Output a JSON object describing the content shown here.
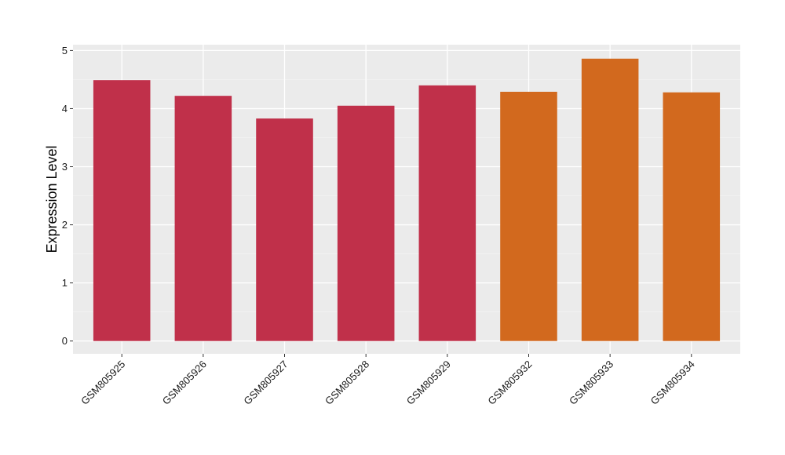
{
  "chart_data": {
    "type": "bar",
    "title": "",
    "xlabel": "",
    "ylabel": "Expression Level",
    "categories": [
      "GSM805925",
      "GSM805926",
      "GSM805927",
      "GSM805928",
      "GSM805929",
      "GSM805932",
      "GSM805933",
      "GSM805934"
    ],
    "values": [
      4.49,
      4.22,
      3.83,
      4.05,
      4.4,
      4.29,
      4.86,
      4.28
    ],
    "bar_colors": [
      "#c0304a",
      "#c0304a",
      "#c0304a",
      "#c0304a",
      "#c0304a",
      "#d2691e",
      "#d2691e",
      "#d2691e"
    ],
    "ylim": [
      -0.22,
      5.1
    ],
    "yticks": [
      0,
      1,
      2,
      3,
      4,
      5
    ],
    "grid": true,
    "legend": "none"
  }
}
